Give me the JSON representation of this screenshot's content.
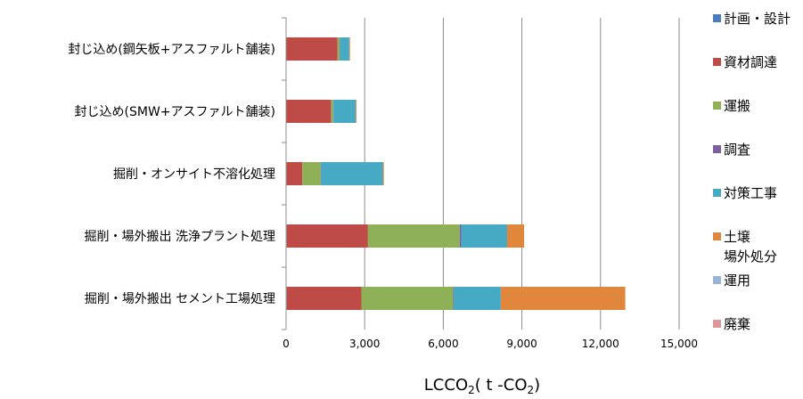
{
  "chart_data": {
    "type": "bar",
    "orientation": "horizontal",
    "stacked": true,
    "categories": [
      "封じ込め(鋼矢板+アスファルト舗装)",
      "封じ込め(SMW+アスファルト舗装)",
      "掘削・オンサイト不溶化処理",
      "掘削・場外搬出 洗浄プラント処理",
      "掘削・場外搬出 セメント工場処理"
    ],
    "series": [
      {
        "name": "計画・設計",
        "color": "#4a7ebb",
        "values": [
          15,
          15,
          20,
          25,
          25
        ]
      },
      {
        "name": "資材調達",
        "color": "#be4b48",
        "values": [
          1950,
          1700,
          600,
          3100,
          2850
        ]
      },
      {
        "name": "運搬",
        "color": "#8eb157",
        "values": [
          80,
          80,
          700,
          3500,
          3500
        ]
      },
      {
        "name": "調査",
        "color": "#7d60a0",
        "values": [
          15,
          15,
          20,
          60,
          20
        ]
      },
      {
        "name": "対策工事",
        "color": "#46aac4",
        "values": [
          350,
          850,
          2350,
          1750,
          1800
        ]
      },
      {
        "name": "土壌\n場外処分",
        "color": "#e0863d",
        "values": [
          30,
          30,
          40,
          650,
          4750
        ]
      },
      {
        "name": "運用",
        "color": "#99b4d7",
        "values": [
          0,
          0,
          0,
          0,
          0
        ]
      },
      {
        "name": "廃棄",
        "color": "#dc9898",
        "values": [
          0,
          0,
          0,
          0,
          0
        ]
      }
    ],
    "x_ticks": [
      "0",
      "3,000",
      "6,000",
      "9,000",
      "12,000",
      "15,000"
    ],
    "xlim": [
      0,
      15000
    ],
    "xlabel_main": "LCCO",
    "xlabel_sub": "2",
    "xlabel_paren_open": "( t -CO",
    "xlabel_sub2": "2",
    "xlabel_paren_close": ")",
    "grid": true,
    "legend_position": "right"
  }
}
